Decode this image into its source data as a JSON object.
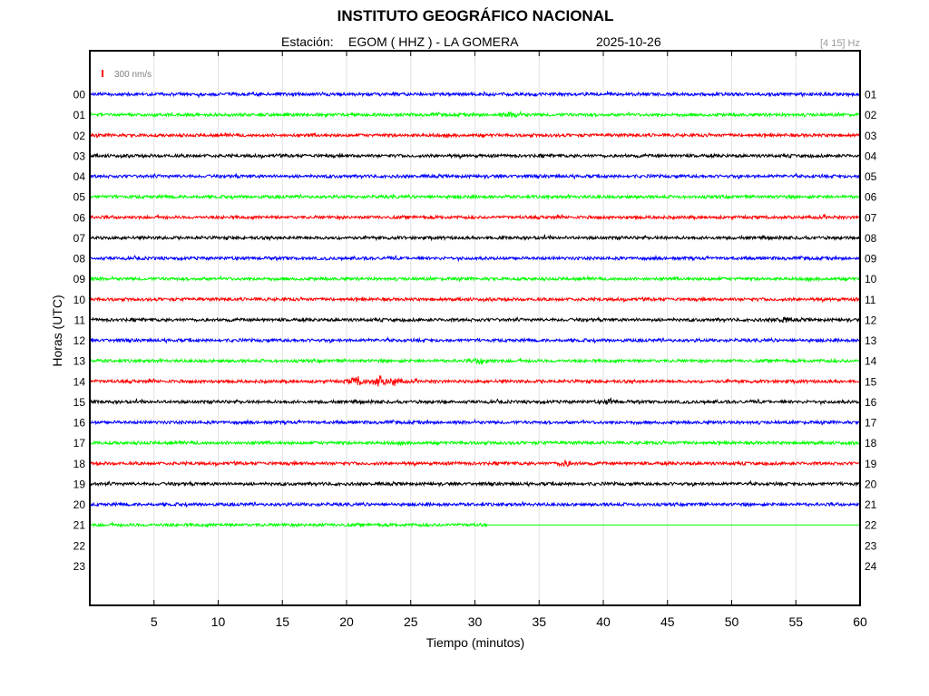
{
  "header": {
    "title": "INSTITUTO GEOGRÁFICO NACIONAL",
    "station_label": "Estación:",
    "station_value": "EGOM ( HHZ ) - LA GOMERA",
    "date": "2025-10-26",
    "filter": "[4 15] Hz"
  },
  "chart_data": {
    "type": "line",
    "title": "INSTITUTO GEOGRÁFICO NACIONAL",
    "xlabel": "Tiempo (minutos)",
    "ylabel": "Horas (UTC)",
    "xlim": [
      0,
      60
    ],
    "x_ticks": [
      5,
      10,
      15,
      20,
      25,
      30,
      35,
      40,
      45,
      50,
      55,
      60
    ],
    "left_labels": [
      "00",
      "01",
      "02",
      "03",
      "04",
      "05",
      "06",
      "07",
      "08",
      "09",
      "10",
      "11",
      "12",
      "13",
      "14",
      "15",
      "16",
      "17",
      "18",
      "19",
      "20",
      "21",
      "22",
      "23"
    ],
    "right_labels": [
      "01",
      "02",
      "03",
      "04",
      "05",
      "06",
      "07",
      "08",
      "09",
      "10",
      "11",
      "12",
      "13",
      "14",
      "15",
      "16",
      "17",
      "18",
      "19",
      "20",
      "21",
      "22",
      "23",
      "24"
    ],
    "scale_label": "300 nm/s",
    "grid": true,
    "color_cycle": [
      "#0000ff",
      "#00ff00",
      "#ff0000",
      "#000000"
    ],
    "last_hour": 21,
    "last_hour_end_minute": 31,
    "events": [
      {
        "hour": 1,
        "minute": 33,
        "amp": 0.5
      },
      {
        "hour": 11,
        "minute": 54,
        "amp": 0.5
      },
      {
        "hour": 13,
        "minute": 30.5,
        "amp": 0.6
      },
      {
        "hour": 14,
        "minute": 20.8,
        "amp": 1.0
      },
      {
        "hour": 14,
        "minute": 22.5,
        "amp": 1.0
      },
      {
        "hour": 14,
        "minute": 23.7,
        "amp": 0.7
      },
      {
        "hour": 15,
        "minute": 40.5,
        "amp": 0.4
      },
      {
        "hour": 18,
        "minute": 37,
        "amp": 0.5
      }
    ]
  }
}
